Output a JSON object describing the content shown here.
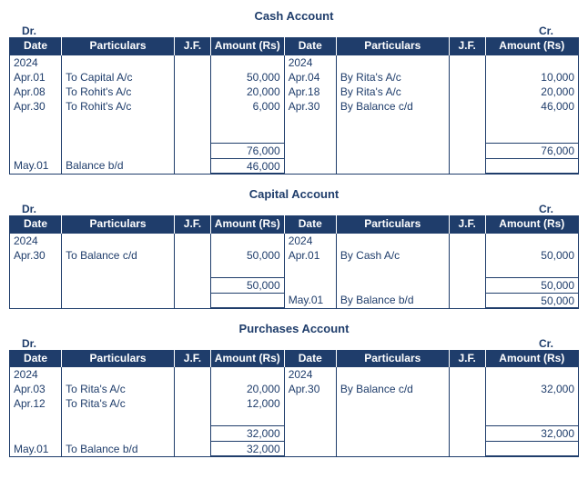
{
  "headers": {
    "date": "Date",
    "particulars": "Particulars",
    "jf": "J.F.",
    "amount": "Amount (Rs)",
    "dr": "Dr.",
    "cr": "Cr."
  },
  "accounts": [
    {
      "title": "Cash Account",
      "wide_last_amt": true,
      "rows": [
        {
          "d_date": "2024",
          "d_part": "",
          "d_amt": "",
          "c_date": "2024",
          "c_part": "",
          "c_amt": ""
        },
        {
          "d_date": "Apr.01",
          "d_part": "To Capital A/c",
          "d_amt": "50,000",
          "c_date": "Apr.04",
          "c_part": "By Rita's A/c",
          "c_amt": "10,000"
        },
        {
          "d_date": "Apr.08",
          "d_part": "To Rohit's A/c",
          "d_amt": "20,000",
          "c_date": "Apr.18",
          "c_part": "By Rita's A/c",
          "c_amt": "20,000"
        },
        {
          "d_date": "Apr.30",
          "d_part": "To Rohit's A/c",
          "d_amt": "6,000",
          "c_date": "Apr.30",
          "c_part": "By Balance c/d",
          "c_amt": "46,000"
        },
        {
          "d_date": "",
          "d_part": "",
          "d_amt": "",
          "c_date": "",
          "c_part": "",
          "c_amt": ""
        },
        {
          "d_date": "",
          "d_part": "",
          "d_amt": "",
          "c_date": "",
          "c_part": "",
          "c_amt": ""
        },
        {
          "type": "total",
          "d_amt": "76,000",
          "c_amt": "76,000"
        },
        {
          "type": "carry",
          "d_date": "May.01",
          "d_part": "Balance b/d",
          "d_amt": "46,000",
          "c_date": "",
          "c_part": "",
          "c_amt": ""
        }
      ]
    },
    {
      "title": "Capital Account",
      "wide_last_amt": true,
      "rows": [
        {
          "d_date": "2024",
          "d_part": "",
          "d_amt": "",
          "c_date": "2024",
          "c_part": "",
          "c_amt": ""
        },
        {
          "d_date": "Apr.30",
          "d_part": "To Balance c/d",
          "d_amt": "50,000",
          "c_date": "Apr.01",
          "c_part": "By Cash A/c",
          "c_amt": "50,000"
        },
        {
          "d_date": "",
          "d_part": "",
          "d_amt": "",
          "c_date": "",
          "c_part": "",
          "c_amt": ""
        },
        {
          "type": "total",
          "d_amt": "50,000",
          "c_amt": "50,000"
        },
        {
          "type": "carry",
          "d_date": "",
          "d_part": "",
          "d_amt": "",
          "c_date": "May.01",
          "c_part": "By Balance b/d",
          "c_amt": "50,000"
        }
      ]
    },
    {
      "title": "Purchases Account",
      "wide_last_amt": true,
      "rows": [
        {
          "d_date": "2024",
          "d_part": "",
          "d_amt": "",
          "c_date": "2024",
          "c_part": "",
          "c_amt": ""
        },
        {
          "d_date": "Apr.03",
          "d_part": "To Rita's A/c",
          "d_amt": "20,000",
          "c_date": "Apr.30",
          "c_part": "By Balance c/d",
          "c_amt": "32,000"
        },
        {
          "d_date": "Apr.12",
          "d_part": "To Rita's A/c",
          "d_amt": "12,000",
          "c_date": "",
          "c_part": "",
          "c_amt": ""
        },
        {
          "d_date": "",
          "d_part": "",
          "d_amt": "",
          "c_date": "",
          "c_part": "",
          "c_amt": ""
        },
        {
          "type": "total",
          "d_amt": "32,000",
          "c_amt": "32,000"
        },
        {
          "type": "carry",
          "d_date": "May.01",
          "d_part": "To Balance b/d",
          "d_amt": "32,000",
          "c_date": "",
          "c_part": "",
          "c_amt": ""
        }
      ]
    }
  ]
}
